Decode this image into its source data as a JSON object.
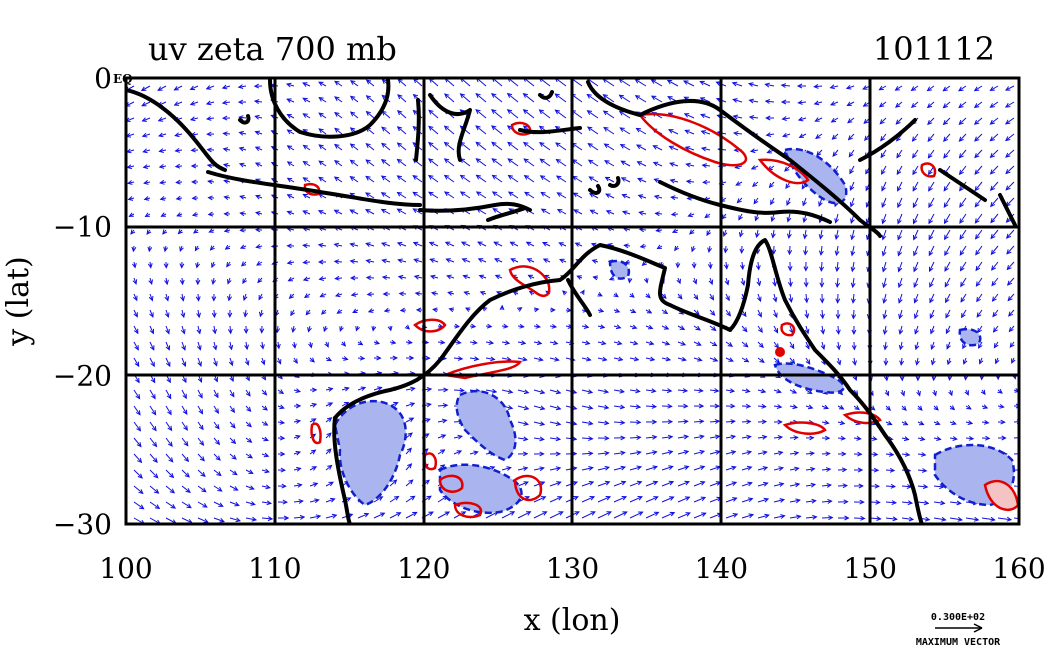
{
  "chart_data": {
    "type": "vector-field",
    "title": "uv zeta 700 mb",
    "date_label": "101112",
    "xlabel": "x (lon)",
    "ylabel": "y (lat)",
    "xlim": [
      100,
      160
    ],
    "ylim": [
      -30,
      0
    ],
    "x_ticks": [
      100,
      110,
      120,
      130,
      140,
      150,
      160
    ],
    "x_tick_labels": [
      "100",
      "110",
      "120",
      "130",
      "140",
      "150",
      "160"
    ],
    "y_ticks": [
      0,
      -10,
      -20,
      -30
    ],
    "y_tick_labels": [
      "0",
      "−10",
      "−20",
      "−30"
    ],
    "corner_label": "EQ",
    "grid": true,
    "grid_lines_lon": [
      110,
      120,
      130,
      140,
      150
    ],
    "grid_lines_lat": [
      -10,
      -20
    ],
    "reference_vector": {
      "value_label": "0.300E+02",
      "caption": "MAXIMUM VECTOR"
    },
    "colors": {
      "vectors": "#1010e0",
      "positive_contour": "#e00000",
      "negative_contour": "#1020d0",
      "negative_fill": "#aab4ee",
      "positive_fill": "#f4c4c4",
      "coastline": "#000000"
    }
  }
}
